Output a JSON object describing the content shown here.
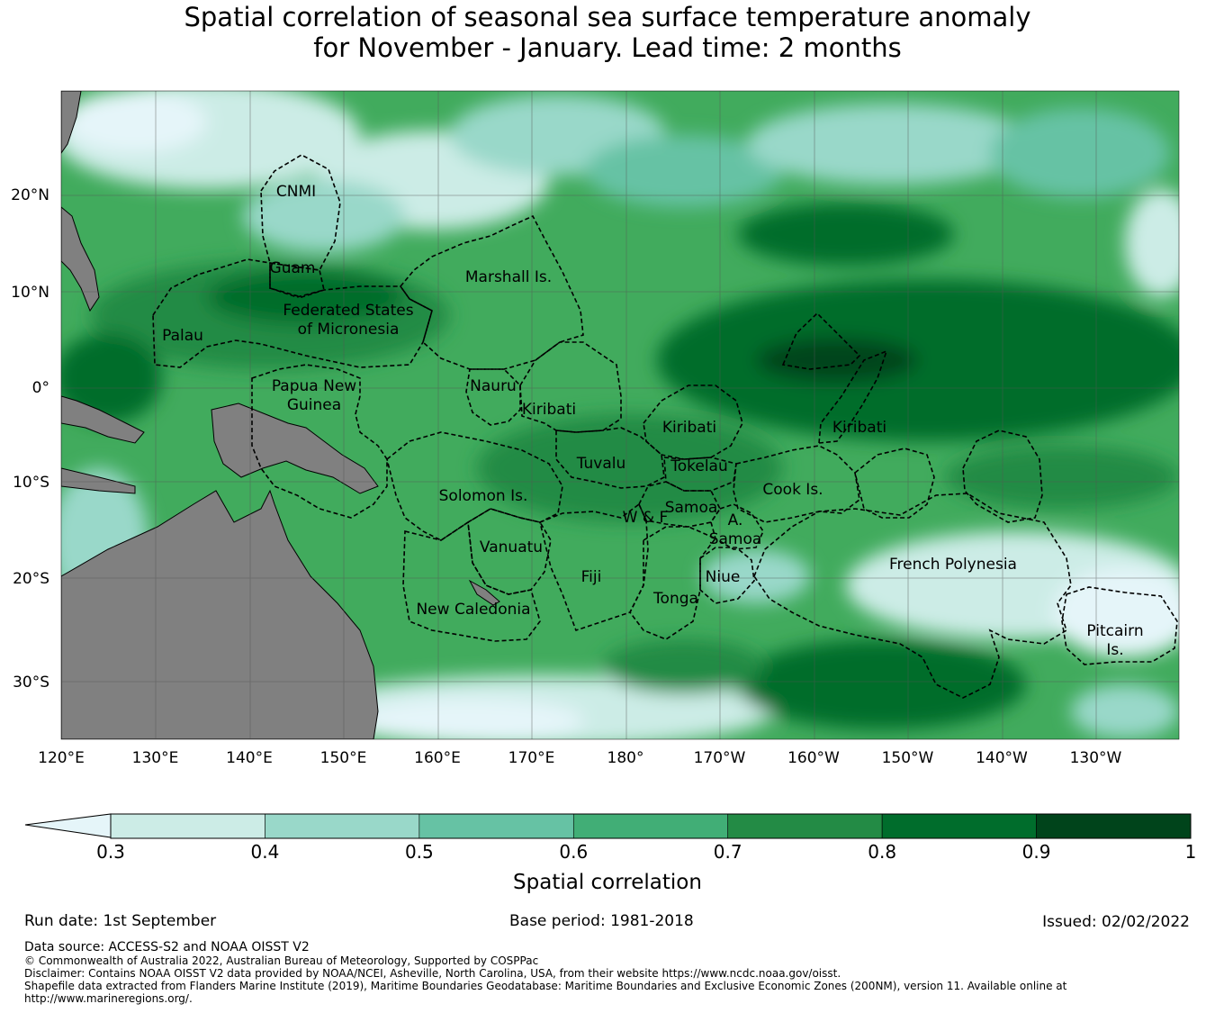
{
  "title": {
    "line1": "Spatial correlation of seasonal sea surface temperature anomaly",
    "line2": "for November - January. Lead time: 2 months"
  },
  "map": {
    "lon_ticks": [
      "120°E",
      "130°E",
      "140°E",
      "150°E",
      "160°E",
      "170°E",
      "180°",
      "170°W",
      "160°W",
      "150°W",
      "140°W",
      "130°W"
    ],
    "lat_ticks": [
      "20°N",
      "10°N",
      "0°",
      "10°S",
      "20°S",
      "30°S"
    ],
    "colors": {
      "land": "#808080",
      "ocean_background": "#41ab5d",
      "boundary_line": "#000000"
    },
    "regions": [
      {
        "id": "cnmi",
        "lines": [
          "CNMI"
        ]
      },
      {
        "id": "guam",
        "lines": [
          "Guam"
        ]
      },
      {
        "id": "marshall",
        "lines": [
          "Marshall Is."
        ]
      },
      {
        "id": "fsm",
        "lines": [
          "Federated States",
          "of Micronesia"
        ]
      },
      {
        "id": "palau",
        "lines": [
          "Palau"
        ]
      },
      {
        "id": "png",
        "lines": [
          "Papua New",
          "Guinea"
        ]
      },
      {
        "id": "nauru",
        "lines": [
          "Nauru"
        ]
      },
      {
        "id": "kiribati-w",
        "lines": [
          "Kiribati"
        ]
      },
      {
        "id": "kiribati-c",
        "lines": [
          "Kiribati"
        ]
      },
      {
        "id": "kiribati-e",
        "lines": [
          "Kiribati"
        ]
      },
      {
        "id": "tuvalu",
        "lines": [
          "Tuvalu"
        ]
      },
      {
        "id": "tokelau",
        "lines": [
          "Tokelau"
        ]
      },
      {
        "id": "solomon",
        "lines": [
          "Solomon Is."
        ]
      },
      {
        "id": "cook",
        "lines": [
          "Cook Is."
        ]
      },
      {
        "id": "samoa",
        "lines": [
          "Samoa"
        ]
      },
      {
        "id": "wf",
        "lines": [
          "W & F"
        ]
      },
      {
        "id": "asamoa",
        "lines": [
          "A.",
          "Samoa"
        ]
      },
      {
        "id": "vanuatu",
        "lines": [
          "Vanuatu"
        ]
      },
      {
        "id": "fiji",
        "lines": [
          "Fiji"
        ]
      },
      {
        "id": "niue",
        "lines": [
          "Niue"
        ]
      },
      {
        "id": "tonga",
        "lines": [
          "Tonga"
        ]
      },
      {
        "id": "newcal",
        "lines": [
          "New Caledonia"
        ]
      },
      {
        "id": "frpoly",
        "lines": [
          "French Polynesia"
        ]
      },
      {
        "id": "pitcairn",
        "lines": [
          "Pitcairn",
          "Is."
        ]
      }
    ]
  },
  "colorbar": {
    "label": "Spatial correlation",
    "ticks": [
      "0.3",
      "0.4",
      "0.5",
      "0.6",
      "0.7",
      "0.8",
      "0.9",
      "1"
    ],
    "extend_color": "#e5f5f9",
    "colors": [
      "#ccece6",
      "#99d8c9",
      "#66c2a4",
      "#41ae76",
      "#238b45",
      "#006d2c",
      "#00441b"
    ]
  },
  "footer": {
    "run_date": "Run date: 1st September",
    "base_period": "Base period: 1981-2018",
    "issued": "Issued: 02/02/2022",
    "data_source": "Data source: ACCESS-S2 and NOAA OISST V2",
    "copyright": "© Commonwealth of Australia 2022, Australian Bureau of Meteorology, Supported by COSPPac",
    "disclaimer": "Disclaimer: Contains NOAA OISST V2 data provided by NOAA/NCEI, Asheville, North Carolina, USA, from their website https://www.ncdc.noaa.gov/oisst.",
    "shapefile_1": "Shapefile data extracted from Flanders Marine Institute (2019), Maritime Boundaries Geodatabase: Maritime Boundaries and Exclusive Economic Zones (200NM), version 11. Available online at",
    "shapefile_2": "http://www.marineregions.org/."
  }
}
